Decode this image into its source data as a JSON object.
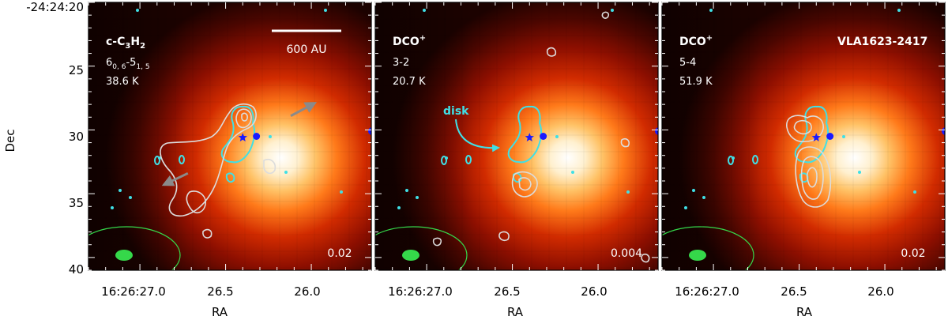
{
  "figure": {
    "ylabel": "Dec",
    "xlabel": "RA",
    "ytick_labels": [
      "-24:24:20",
      "25",
      "30",
      "35",
      "40"
    ],
    "xtick_labels": [
      "16:26:27.0",
      "26.5",
      "26.0"
    ]
  },
  "chart_data": [
    {
      "type": "heatmap",
      "panel": "left",
      "line_species": "c-C3H2",
      "line_species_main": "c-C",
      "line_species_sub": "3",
      "line_species_main2": "H",
      "line_species_sub2": "2",
      "transition": "6",
      "transition_sub1": "0, 6",
      "transition_mid": "-5",
      "transition_sub2": "1, 5",
      "energy": "38.6 K",
      "contour_level_label": "0.02",
      "scalebar_label": "600 AU",
      "xlabel": "RA",
      "ylabel": "Dec",
      "xlim": [
        27.3,
        25.65
      ],
      "ylim": [
        41,
        20
      ],
      "colormap": "gist_heat",
      "peak_position": {
        "ra": 26.15,
        "dec": 33.2
      },
      "markers": [
        {
          "kind": "star",
          "ra": 26.4,
          "dec": 30.6
        },
        {
          "kind": "dot",
          "ra": 26.32,
          "dec": 30.5
        }
      ],
      "outflow_arrows": [
        {
          "from": [
            26.12,
            28.9
          ],
          "to": [
            25.98,
            27.9
          ]
        },
        {
          "from": [
            26.72,
            33.4
          ],
          "to": [
            26.86,
            34.3
          ]
        }
      ]
    },
    {
      "type": "heatmap",
      "panel": "middle",
      "line_species": "DCO+",
      "line_species_main": "DCO",
      "line_species_sup": "+",
      "transition": "3-2",
      "energy": "20.7 K",
      "contour_level_label": "0.004",
      "annotation": "disk",
      "xlabel": "RA",
      "ylabel": "Dec",
      "xlim": [
        27.3,
        25.65
      ],
      "ylim": [
        41,
        20
      ],
      "colormap": "gist_heat",
      "peak_position": {
        "ra": 26.15,
        "dec": 33.2
      },
      "markers": [
        {
          "kind": "star",
          "ra": 26.4,
          "dec": 30.6
        },
        {
          "kind": "dot",
          "ra": 26.32,
          "dec": 30.5
        }
      ]
    },
    {
      "type": "heatmap",
      "panel": "right",
      "line_species": "DCO+",
      "line_species_main": "DCO",
      "line_species_sup": "+",
      "transition": "5-4",
      "energy": "51.9 K",
      "source_name": "VLA1623-2417",
      "contour_level_label": "0.02",
      "xlabel": "RA",
      "ylabel": "Dec",
      "xlim": [
        27.3,
        25.65
      ],
      "ylim": [
        41,
        20
      ],
      "colormap": "gist_heat",
      "peak_position": {
        "ra": 26.15,
        "dec": 33.2
      },
      "markers": [
        {
          "kind": "star",
          "ra": 26.4,
          "dec": 30.6
        },
        {
          "kind": "dot",
          "ra": 26.32,
          "dec": 30.5
        }
      ]
    }
  ],
  "colors": {
    "contour_gray": "#dcdcdc",
    "contour_cyan": "#3fe0e6",
    "beam_green": "#35d84a",
    "marker_blue": "#1a1aff",
    "arrow_gray": "#8a8a8a",
    "label_white": "#ffffff"
  }
}
